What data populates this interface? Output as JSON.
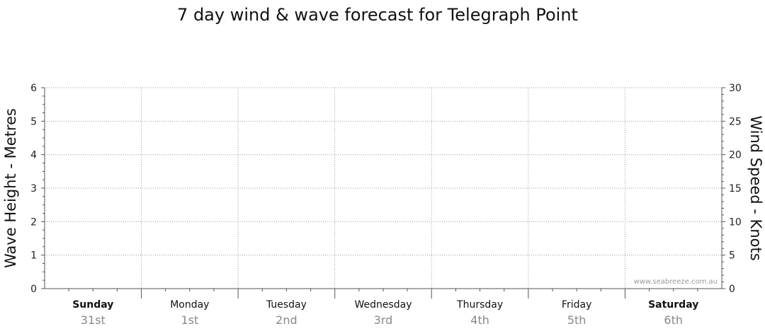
{
  "chart_data": {
    "type": "line",
    "title": "7 day wind & wave forecast for Telegraph Point",
    "y_left": {
      "label": "Wave Height - Metres",
      "range": [
        0,
        6
      ],
      "ticks": [
        0,
        1,
        2,
        3,
        4,
        5,
        6
      ]
    },
    "y_right": {
      "label": "Wind Speed - Knots",
      "range": [
        0,
        30
      ],
      "ticks": [
        0,
        5,
        10,
        15,
        20,
        25,
        30
      ]
    },
    "days": [
      {
        "name": "Sunday",
        "date": "31st",
        "bold": true
      },
      {
        "name": "Monday",
        "date": "1st",
        "bold": false
      },
      {
        "name": "Tuesday",
        "date": "2nd",
        "bold": false
      },
      {
        "name": "Wednesday",
        "date": "3rd",
        "bold": false
      },
      {
        "name": "Thursday",
        "date": "4th",
        "bold": false
      },
      {
        "name": "Friday",
        "date": "5th",
        "bold": false
      },
      {
        "name": "Saturday",
        "date": "6th",
        "bold": true
      }
    ],
    "grid": true,
    "series": [],
    "watermark": "www.seabreeze.com.au"
  }
}
